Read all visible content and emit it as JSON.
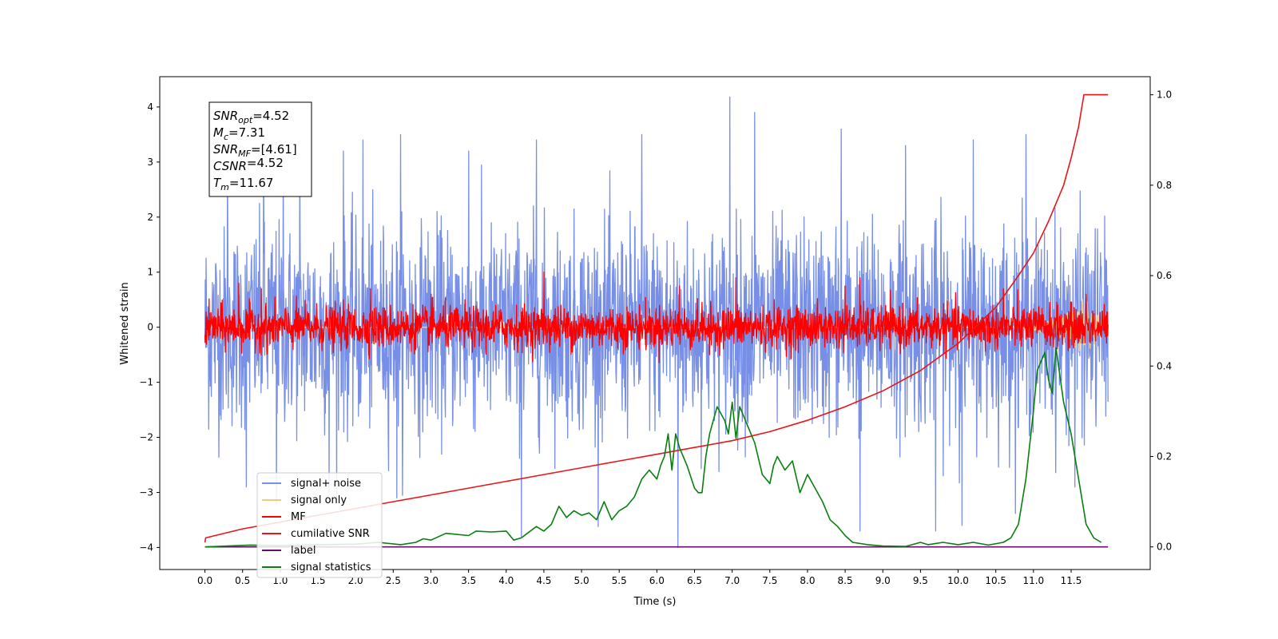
{
  "chart_data": {
    "type": "line",
    "xlabel": "Time (s)",
    "ylabel": "Whitened strain",
    "xlim": [
      -0.6,
      12.55
    ],
    "ylim": [
      -4.4,
      4.55
    ],
    "y2lim": [
      -0.05,
      1.04
    ],
    "x_ticks": [
      0.0,
      0.5,
      1.0,
      1.5,
      2.0,
      2.5,
      3.0,
      3.5,
      4.0,
      4.5,
      5.0,
      5.5,
      6.0,
      6.5,
      7.0,
      7.5,
      8.0,
      8.5,
      9.0,
      9.5,
      10.0,
      10.5,
      11.0,
      11.5
    ],
    "x_tick_labels": [
      "0.0",
      "0.5",
      "1.0",
      "1.5",
      "2.0",
      "2.5",
      "3.0",
      "3.5",
      "4.0",
      "4.5",
      "5.0",
      "5.5",
      "6.0",
      "6.5",
      "7.0",
      "7.5",
      "8.0",
      "8.5",
      "9.0",
      "9.5",
      "10.0",
      "10.5",
      "11.0",
      "11.5"
    ],
    "y_ticks": [
      -4,
      -3,
      -2,
      -1,
      0,
      1,
      2,
      3,
      4
    ],
    "y_tick_labels": [
      "−4",
      "−3",
      "−2",
      "−1",
      "0",
      "1",
      "2",
      "3",
      "4"
    ],
    "y2_ticks": [
      0.0,
      0.2,
      0.4,
      0.6,
      0.8,
      1.0
    ],
    "y2_tick_labels": [
      "0.0",
      "0.2",
      "0.4",
      "0.6",
      "0.8",
      "1.0"
    ],
    "grid": false,
    "legend_position": "lower-left",
    "annotation": {
      "lines": [
        {
          "var": "SNR",
          "sub": "opt",
          "value": "=4.52"
        },
        {
          "var": "M",
          "sub": "c",
          "value": "=7.31"
        },
        {
          "var": "SNR",
          "sub": "MF",
          "value": "=[4.61]"
        },
        {
          "var": "CSNR",
          "sub": "",
          "value": "=4.52"
        },
        {
          "var": "T",
          "sub": "m",
          "value": "=11.67"
        }
      ]
    },
    "series": [
      {
        "name": "signal+ noise",
        "color": "#778fe6",
        "axis": "left",
        "style": "noise",
        "x_range": [
          0.0,
          11.99
        ],
        "center": 0.0,
        "spread": 0.9,
        "peaks": [
          {
            "x": 0.3,
            "y": 3.0
          },
          {
            "x": 0.78,
            "y": 3.1
          },
          {
            "x": 1.04,
            "y": 3.2
          },
          {
            "x": 1.26,
            "y": 3.3
          },
          {
            "x": 1.84,
            "y": 3.2
          },
          {
            "x": 2.1,
            "y": 3.4
          },
          {
            "x": 2.6,
            "y": 3.5
          },
          {
            "x": 3.5,
            "y": 3.2
          },
          {
            "x": 4.4,
            "y": 3.4
          },
          {
            "x": 5.8,
            "y": 3.5
          },
          {
            "x": 6.97,
            "y": 4.18
          },
          {
            "x": 7.3,
            "y": 3.9
          },
          {
            "x": 8.45,
            "y": 3.6
          },
          {
            "x": 9.3,
            "y": 3.3
          },
          {
            "x": 10.2,
            "y": 3.4
          },
          {
            "x": 10.9,
            "y": 3.5
          },
          {
            "x": 0.55,
            "y": -2.9
          },
          {
            "x": 0.95,
            "y": -3.2
          },
          {
            "x": 1.65,
            "y": -3.0
          },
          {
            "x": 2.55,
            "y": -3.1
          },
          {
            "x": 4.2,
            "y": -3.8
          },
          {
            "x": 6.28,
            "y": -4.0
          },
          {
            "x": 8.7,
            "y": -3.7
          },
          {
            "x": 9.7,
            "y": -3.7
          },
          {
            "x": 10.05,
            "y": -3.6
          },
          {
            "x": 11.55,
            "y": -2.9
          }
        ]
      },
      {
        "name": "signal only",
        "color": "#f5c97a",
        "axis": "left",
        "style": "chirp",
        "x": [
          0.0,
          10.6,
          11.0,
          11.3,
          11.5,
          11.6,
          11.67,
          11.99
        ],
        "amplitude": [
          0.0,
          0.0,
          0.08,
          0.15,
          0.3,
          0.45,
          0.55,
          0.0
        ]
      },
      {
        "name": "MF",
        "color": "#ff0000",
        "axis": "left",
        "style": "noise",
        "x_range": [
          0.0,
          11.99
        ],
        "center": 0.0,
        "spread": 0.19,
        "peaks": [
          {
            "x": 0.45,
            "y": 0.8
          },
          {
            "x": 0.75,
            "y": 0.7
          },
          {
            "x": 2.2,
            "y": 0.7
          },
          {
            "x": 3.0,
            "y": 0.6
          },
          {
            "x": 4.5,
            "y": 1.0
          },
          {
            "x": 6.3,
            "y": 0.75
          },
          {
            "x": 7.05,
            "y": 0.9
          },
          {
            "x": 8.5,
            "y": 0.75
          },
          {
            "x": 8.7,
            "y": 0.9
          },
          {
            "x": 10.6,
            "y": 0.7
          },
          {
            "x": 11.7,
            "y": 0.6
          },
          {
            "x": 6.7,
            "y": -0.5
          }
        ]
      },
      {
        "name": "cumilative SNR",
        "color": "#e8161a",
        "axis": "right",
        "style": "line",
        "x": [
          0.0,
          0.01,
          0.5,
          1.0,
          1.5,
          2.0,
          2.5,
          3.0,
          3.5,
          4.0,
          4.5,
          5.0,
          5.5,
          6.0,
          6.5,
          7.0,
          7.5,
          8.0,
          8.5,
          9.0,
          9.5,
          10.0,
          10.5,
          10.8,
          11.0,
          11.2,
          11.4,
          11.5,
          11.6,
          11.67,
          11.99
        ],
        "y": [
          0.01,
          0.02,
          0.04,
          0.055,
          0.07,
          0.085,
          0.1,
          0.115,
          0.13,
          0.145,
          0.16,
          0.175,
          0.19,
          0.205,
          0.22,
          0.235,
          0.255,
          0.28,
          0.31,
          0.345,
          0.39,
          0.45,
          0.53,
          0.6,
          0.65,
          0.72,
          0.8,
          0.86,
          0.93,
          1.0,
          1.0
        ]
      },
      {
        "name": "label",
        "color": "#6a0d6a",
        "axis": "right",
        "style": "line",
        "x": [
          0.0,
          11.99
        ],
        "y": [
          0.0,
          0.0
        ]
      },
      {
        "name": "signal statistics",
        "color": "#087f0f",
        "axis": "right",
        "style": "line",
        "x": [
          0.0,
          0.3,
          0.6,
          1.0,
          1.5,
          2.0,
          2.3,
          2.6,
          2.8,
          2.9,
          3.0,
          3.2,
          3.5,
          3.6,
          3.8,
          4.0,
          4.1,
          4.2,
          4.4,
          4.5,
          4.6,
          4.7,
          4.8,
          4.9,
          5.0,
          5.1,
          5.2,
          5.3,
          5.4,
          5.5,
          5.6,
          5.7,
          5.8,
          5.9,
          6.0,
          6.05,
          6.1,
          6.15,
          6.2,
          6.25,
          6.3,
          6.4,
          6.5,
          6.55,
          6.6,
          6.65,
          6.7,
          6.8,
          6.9,
          6.95,
          7.0,
          7.05,
          7.1,
          7.15,
          7.2,
          7.3,
          7.4,
          7.5,
          7.55,
          7.6,
          7.7,
          7.8,
          7.9,
          8.0,
          8.1,
          8.2,
          8.3,
          8.4,
          8.5,
          8.6,
          8.8,
          9.0,
          9.3,
          9.5,
          9.6,
          9.8,
          10.0,
          10.2,
          10.4,
          10.6,
          10.7,
          10.8,
          10.9,
          11.0,
          11.05,
          11.1,
          11.15,
          11.2,
          11.25,
          11.3,
          11.4,
          11.5,
          11.6,
          11.7,
          11.8,
          11.9
        ],
        "y": [
          0.0,
          0.002,
          0.004,
          0.003,
          0.005,
          0.006,
          0.01,
          0.005,
          0.01,
          0.018,
          0.015,
          0.03,
          0.025,
          0.035,
          0.033,
          0.035,
          0.015,
          0.02,
          0.045,
          0.035,
          0.05,
          0.09,
          0.065,
          0.08,
          0.07,
          0.075,
          0.06,
          0.1,
          0.06,
          0.08,
          0.09,
          0.11,
          0.15,
          0.17,
          0.15,
          0.18,
          0.2,
          0.25,
          0.17,
          0.25,
          0.22,
          0.18,
          0.13,
          0.12,
          0.12,
          0.2,
          0.25,
          0.31,
          0.28,
          0.25,
          0.32,
          0.24,
          0.31,
          0.29,
          0.27,
          0.23,
          0.16,
          0.14,
          0.18,
          0.2,
          0.17,
          0.19,
          0.12,
          0.16,
          0.13,
          0.1,
          0.06,
          0.045,
          0.025,
          0.01,
          0.005,
          0.002,
          0.001,
          0.01,
          0.005,
          0.01,
          0.005,
          0.01,
          0.004,
          0.01,
          0.02,
          0.05,
          0.15,
          0.3,
          0.39,
          0.41,
          0.43,
          0.37,
          0.34,
          0.44,
          0.32,
          0.25,
          0.15,
          0.05,
          0.02,
          0.01
        ]
      }
    ]
  }
}
